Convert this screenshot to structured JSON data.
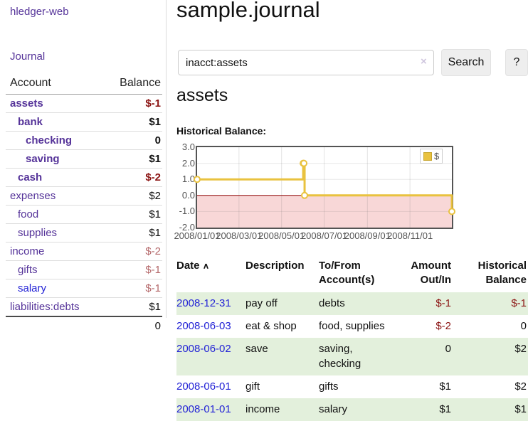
{
  "brand": "hledger-web",
  "nav": {
    "journal": "Journal"
  },
  "sidebar": {
    "columns": {
      "account": "Account",
      "balance": "Balance"
    },
    "accounts": [
      {
        "name": "assets",
        "level": 0,
        "balance": "$-1",
        "bold": true,
        "neg": "strong"
      },
      {
        "name": "bank",
        "level": 1,
        "balance": "$1",
        "bold": true,
        "neg": "none"
      },
      {
        "name": "checking",
        "level": 2,
        "balance": "0",
        "bold": true,
        "neg": "none"
      },
      {
        "name": "saving",
        "level": 2,
        "balance": "$1",
        "bold": true,
        "neg": "none"
      },
      {
        "name": "cash",
        "level": 1,
        "balance": "$-2",
        "bold": true,
        "neg": "strong"
      },
      {
        "name": "expenses",
        "level": 0,
        "balance": "$2",
        "bold": false,
        "neg": "none"
      },
      {
        "name": "food",
        "level": 1,
        "balance": "$1",
        "bold": false,
        "neg": "none"
      },
      {
        "name": "supplies",
        "level": 1,
        "balance": "$1",
        "bold": false,
        "neg": "none"
      },
      {
        "name": "income",
        "level": 0,
        "balance": "$-2",
        "bold": false,
        "neg": "dim"
      },
      {
        "name": "gifts",
        "level": 1,
        "balance": "$-1",
        "bold": false,
        "neg": "dim"
      },
      {
        "name": "salary",
        "level": 1,
        "balance": "$-1",
        "bold": false,
        "neg": "dim",
        "link": "blue"
      },
      {
        "name": "liabilities:debts",
        "level": 0,
        "balance": "$1",
        "bold": false,
        "neg": "none"
      }
    ],
    "total": "0"
  },
  "header": {
    "title": "sample.journal"
  },
  "search": {
    "value": "inacct:assets",
    "clear_icon": "×",
    "button": "Search",
    "help": "?"
  },
  "account_page": {
    "heading": "assets",
    "chart_label": "Historical Balance:"
  },
  "chart_data": {
    "type": "line",
    "step": true,
    "title": "Historical Balance:",
    "xrange": [
      "2008-01-01",
      "2008-12-31"
    ],
    "ylim": [
      -2,
      3
    ],
    "yticks": [
      3.0,
      2.0,
      1.0,
      0.0,
      -1.0,
      -2.0
    ],
    "xticks": [
      "2008/01/01",
      "2008/03/01",
      "2008/05/01",
      "2008/07/01",
      "2008/09/01",
      "2008/11/01"
    ],
    "series": [
      {
        "name": "$",
        "color": "#e9c23f",
        "points": [
          [
            "2008-01-01",
            1
          ],
          [
            "2008-06-01",
            2
          ],
          [
            "2008-06-02",
            2
          ],
          [
            "2008-06-03",
            0
          ],
          [
            "2008-12-31",
            -1
          ]
        ]
      }
    ],
    "legend_position": "top-right",
    "grid": true,
    "zero_line_color": "#8b0000",
    "negative_region_color": "#f8d7d7"
  },
  "register": {
    "columns": [
      "Date",
      "Description",
      "To/From Account(s)",
      "Amount Out/In",
      "Historical Balance"
    ],
    "sort_icon": "∧",
    "rows": [
      {
        "date": "2008-12-31",
        "description": "pay off",
        "accounts": "debts",
        "amount": "$-1",
        "balance": "$-1"
      },
      {
        "date": "2008-06-03",
        "description": "eat & shop",
        "accounts": "food, supplies",
        "amount": "$-2",
        "balance": "0"
      },
      {
        "date": "2008-06-02",
        "description": "save",
        "accounts": "saving, checking",
        "amount": "0",
        "balance": "$2"
      },
      {
        "date": "2008-06-01",
        "description": "gift",
        "accounts": "gifts",
        "amount": "$1",
        "balance": "$2"
      },
      {
        "date": "2008-01-01",
        "description": "income",
        "accounts": "salary",
        "amount": "$1",
        "balance": "$1"
      }
    ]
  },
  "colors": {
    "link_purple": "#553399",
    "link_blue": "#2323d6",
    "negative_strong": "#8b1413",
    "negative_dim": "#b5696b",
    "series_gold": "#e9c23f",
    "stripe_green": "#e3f0dc",
    "negative_region_pink": "#f8d7d7",
    "zero_line_red": "#8b0000"
  }
}
